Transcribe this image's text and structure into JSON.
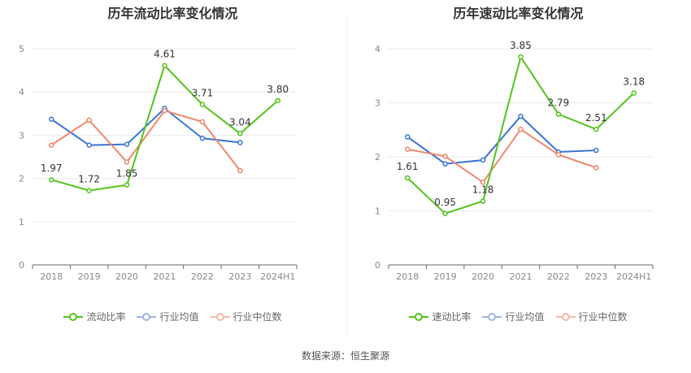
{
  "colors": {
    "company": "#52c41a",
    "industry_avg": "#3b73d6",
    "industry_median": "#f0876a"
  },
  "footer": {
    "source": "数据来源：恒生聚源"
  },
  "chart_data": [
    {
      "type": "line",
      "title": "历年流动比率变化情况",
      "categories": [
        "2018",
        "2019",
        "2020",
        "2021",
        "2022",
        "2023",
        "2024H1"
      ],
      "ylim": [
        0,
        5
      ],
      "yticks": [
        "0",
        "1",
        "2",
        "3",
        "4",
        "5"
      ],
      "grid": true,
      "legend_position": "bottom",
      "series": [
        {
          "name": "流动比率",
          "color": "#52c41a",
          "values": [
            1.97,
            1.72,
            1.85,
            4.61,
            3.71,
            3.04,
            3.8
          ],
          "labels": [
            "1.97",
            "1.72",
            "1.85",
            "4.61",
            "3.71",
            "3.04",
            "3.80"
          ]
        },
        {
          "name": "行业均值",
          "color": "#3b73d6",
          "values": [
            3.37,
            2.77,
            2.79,
            3.62,
            2.93,
            2.83,
            null
          ]
        },
        {
          "name": "行业中位数",
          "color": "#f0876a",
          "values": [
            2.77,
            3.35,
            2.38,
            3.57,
            3.31,
            2.18,
            null
          ]
        }
      ]
    },
    {
      "type": "line",
      "title": "历年速动比率变化情况",
      "categories": [
        "2018",
        "2019",
        "2020",
        "2021",
        "2022",
        "2023",
        "2024H1"
      ],
      "ylim": [
        0,
        4
      ],
      "yticks": [
        "0",
        "1",
        "2",
        "3",
        "4"
      ],
      "grid": true,
      "legend_position": "bottom",
      "series": [
        {
          "name": "速动比率",
          "color": "#52c41a",
          "values": [
            1.61,
            0.95,
            1.18,
            3.85,
            2.79,
            2.51,
            3.18
          ],
          "labels": [
            "1.61",
            "0.95",
            "1.18",
            "3.85",
            "2.79",
            "2.51",
            "3.18"
          ]
        },
        {
          "name": "行业均值",
          "color": "#3b73d6",
          "values": [
            2.37,
            1.87,
            1.94,
            2.75,
            2.09,
            2.12,
            null
          ]
        },
        {
          "name": "行业中位数",
          "color": "#f0876a",
          "values": [
            2.14,
            2.01,
            1.53,
            2.51,
            2.04,
            1.8,
            null
          ]
        }
      ]
    }
  ]
}
